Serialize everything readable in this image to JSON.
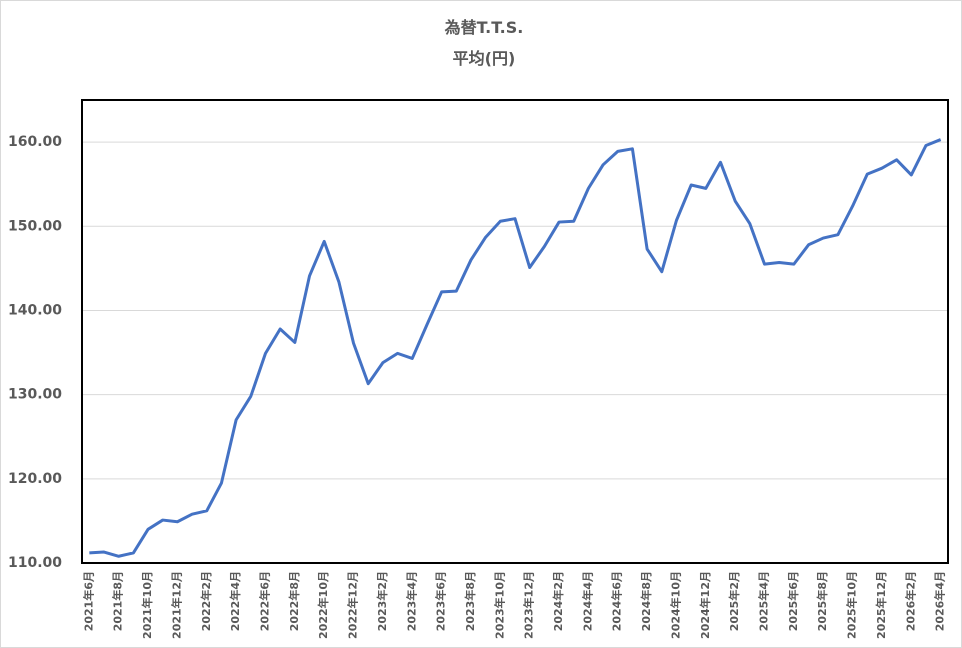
{
  "chart_data": {
    "type": "line",
    "title": "為替T.T.S.",
    "subtitle": "平均(円)",
    "categories": [
      "2021年6月",
      null,
      "2021年8月",
      null,
      "2021年10月",
      null,
      "2021年12月",
      null,
      "2022年2月",
      null,
      "2022年4月",
      null,
      "2022年6月",
      null,
      "2022年8月",
      null,
      "2022年10月",
      null,
      "2022年12月",
      null,
      "2023年2月",
      null,
      "2023年4月",
      null,
      "2023年6月",
      null,
      "2023年8月",
      null,
      "2023年10月",
      null,
      "2023年12月",
      null,
      "2024年2月",
      null,
      "2024年4月",
      null,
      "2024年6月",
      null,
      "2024年8月",
      null,
      "2024年10月",
      null,
      "2024年12月",
      null,
      "2025年2月",
      null,
      "2025年4月",
      null,
      "2025年6月",
      null,
      "2025年8月",
      null,
      "2025年10月",
      null,
      "2025年12月",
      null,
      "2026年2月",
      null,
      "2026年4月"
    ],
    "series": [
      {
        "color": "#4472c4",
        "values": [
          111.2,
          111.3,
          110.8,
          111.2,
          114.0,
          115.1,
          114.9,
          115.8,
          116.2,
          119.5,
          127.0,
          129.8,
          134.9,
          137.8,
          136.2,
          144.1,
          148.2,
          143.4,
          136.1,
          131.3,
          133.8,
          134.9,
          134.3,
          138.3,
          142.2,
          142.3,
          146.0,
          148.7,
          150.6,
          150.9,
          145.1,
          147.6,
          150.5,
          150.6,
          154.5,
          157.3,
          158.9,
          159.2,
          147.3,
          144.6,
          150.7,
          154.9,
          154.5,
          157.6,
          153.0,
          150.3,
          145.5,
          145.7,
          145.5,
          147.8,
          148.6,
          149.0,
          152.4,
          156.2,
          156.9,
          157.9,
          156.1,
          159.6,
          160.3
        ]
      }
    ],
    "ylim": [
      110,
      165
    ],
    "yticks": [
      {
        "value": 110,
        "label": "110.00"
      },
      {
        "value": 120,
        "label": "120.00"
      },
      {
        "value": 130,
        "label": "130.00"
      },
      {
        "value": 140,
        "label": "140.00"
      },
      {
        "value": 150,
        "label": "150.00"
      },
      {
        "value": 160,
        "label": "160.00"
      }
    ],
    "grid": true
  }
}
